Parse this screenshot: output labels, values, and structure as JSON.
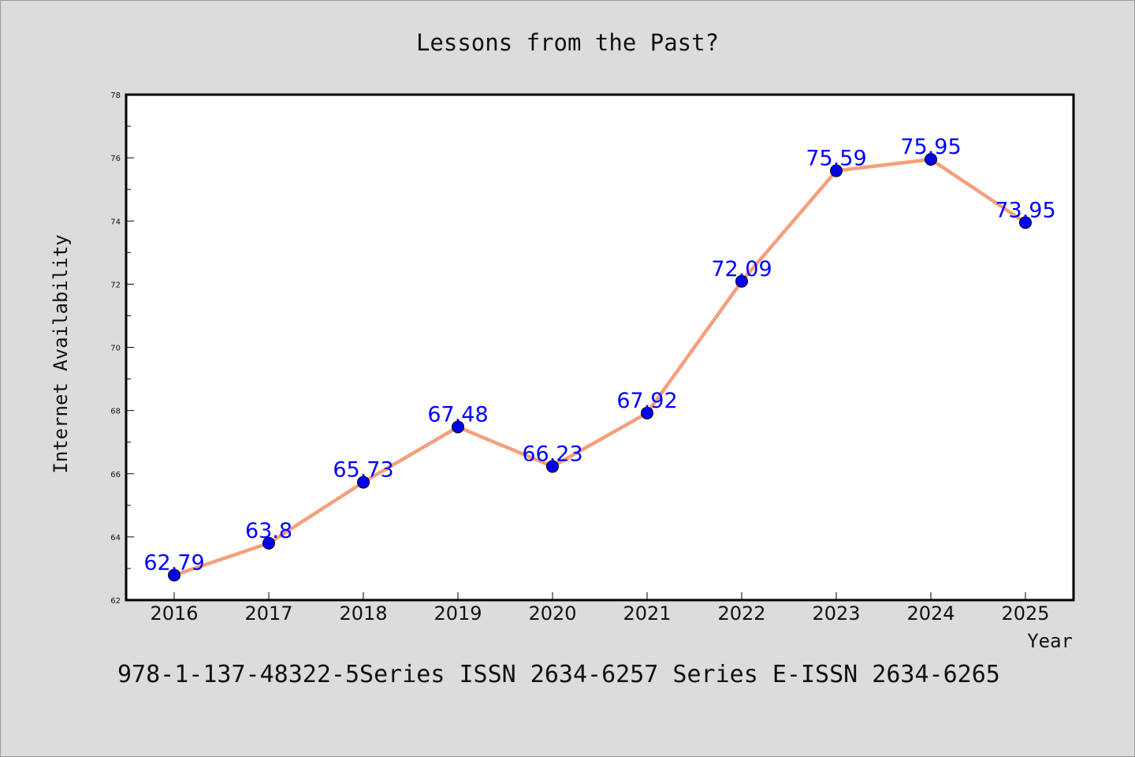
{
  "chart_data": {
    "type": "line",
    "title": "Lessons from the Past?",
    "xlabel": "Year",
    "ylabel": "Internet Availability",
    "categories": [
      "2016",
      "2017",
      "2018",
      "2019",
      "2020",
      "2021",
      "2022",
      "2023",
      "2024",
      "2025"
    ],
    "series": [
      {
        "values": [
          62.79,
          63.8,
          65.73,
          67.48,
          66.23,
          67.92,
          72.09,
          75.59,
          75.95,
          73.95
        ],
        "data_labels": [
          "62.79",
          "63.8",
          "65.73",
          "67.48",
          "66.23",
          "67.92",
          "72.09",
          "75.59",
          "75.95",
          "73.95"
        ],
        "line_color": "#f4a07c",
        "marker_color": "#0000ee",
        "label_color": "#0000ff"
      }
    ],
    "ylim": [
      62,
      78
    ],
    "yticks": [
      "62",
      "64",
      "66",
      "68",
      "70",
      "72",
      "74",
      "76",
      "78"
    ],
    "grid": false,
    "legend": "none",
    "plot_background": "#ffffff"
  },
  "footer": {
    "text": "978-1-137-48322-5Series ISSN 2634-6257 Series E-ISSN 2634-6265"
  }
}
